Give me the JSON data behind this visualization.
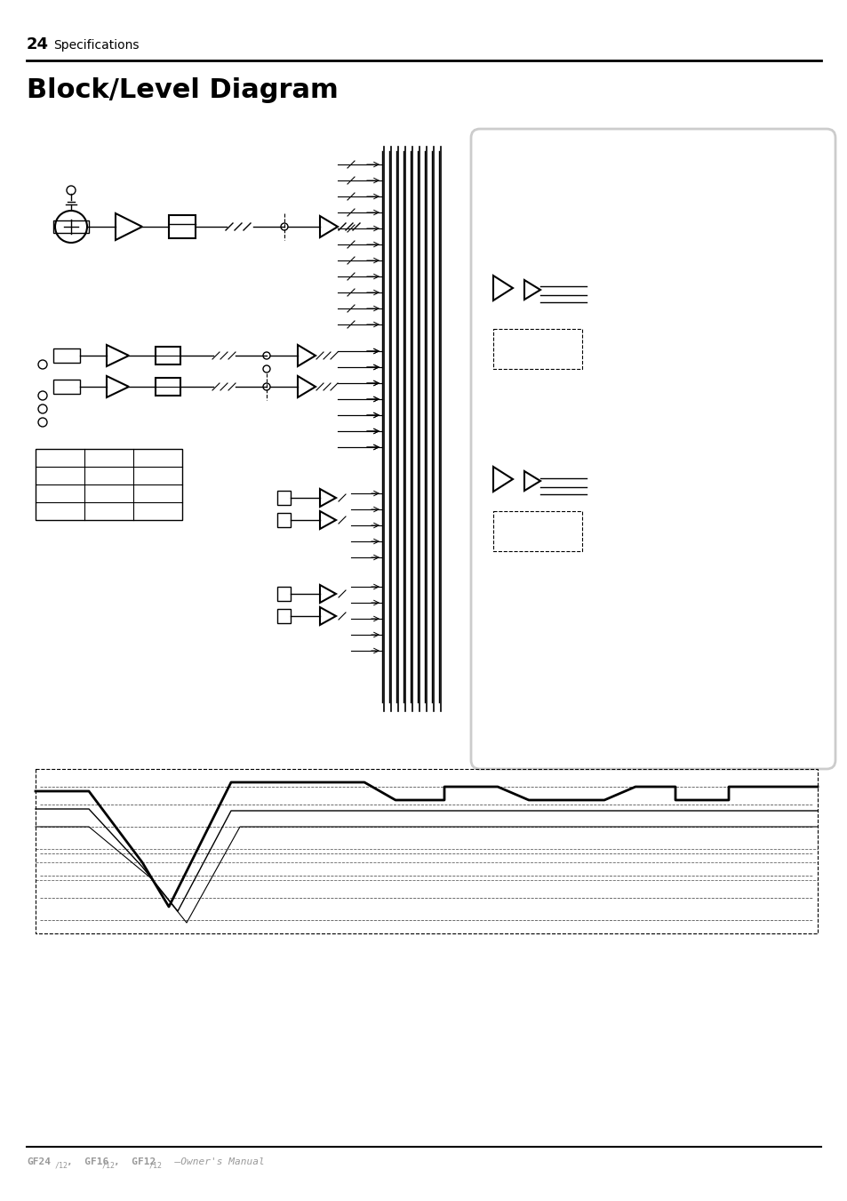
{
  "page_number": "24",
  "page_section": "Specifications",
  "title": "Block/Level Diagram",
  "background_color": "#ffffff",
  "text_color": "#000000",
  "light_gray": "#cccccc",
  "mid_gray": "#999999",
  "dark_gray": "#333333"
}
